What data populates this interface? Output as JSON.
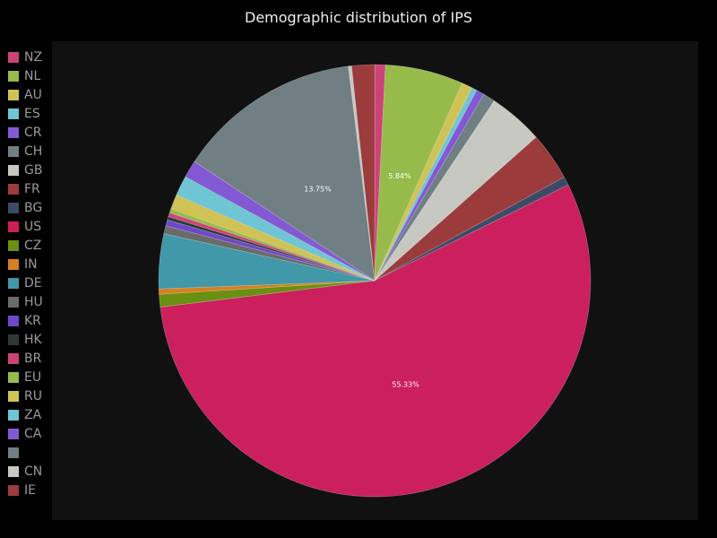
{
  "chart_data": {
    "type": "pie",
    "title": "Demographic distribution of IPS",
    "legend_placement": "left",
    "start_angle_deg": -90,
    "direction": "clockwise",
    "slices": [
      {
        "label": "NZ",
        "value": 0.8,
        "color": "#cc4477"
      },
      {
        "label": "NL",
        "value": 5.84,
        "color": "#96bb4a",
        "data_label": "5.84%"
      },
      {
        "label": "AU",
        "value": 0.8,
        "color": "#d0c355"
      },
      {
        "label": "ES",
        "value": 0.4,
        "color": "#6fc5d3"
      },
      {
        "label": "CR",
        "value": 0.6,
        "color": "#8359d3"
      },
      {
        "label": "CH",
        "value": 0.9,
        "color": "#6f7f83"
      },
      {
        "label": "GB",
        "value": 4.1,
        "color": "#c8c8c2"
      },
      {
        "label": "FR",
        "value": 3.6,
        "color": "#9b3b3c"
      },
      {
        "label": "BG",
        "value": 0.65,
        "color": "#3d4a66"
      },
      {
        "label": "US",
        "value": 55.33,
        "color": "#cb1f5e",
        "data_label": "55.33%"
      },
      {
        "label": "CZ",
        "value": 0.95,
        "color": "#6b8f12"
      },
      {
        "label": "IN",
        "value": 0.4,
        "color": "#d6801e"
      },
      {
        "label": "DE",
        "value": 4.1,
        "color": "#4198a8"
      },
      {
        "label": "HU",
        "value": 0.6,
        "color": "#6a6a6a"
      },
      {
        "label": "KR",
        "value": 0.45,
        "color": "#6f48c8"
      },
      {
        "label": "HK",
        "value": 0.25,
        "color": "#2f3a36"
      },
      {
        "label": "BR",
        "value": 0.3,
        "color": "#cc4477"
      },
      {
        "label": "EU",
        "value": 0.3,
        "color": "#96bb4a"
      },
      {
        "label": "RU",
        "value": 1.1,
        "color": "#d0c355"
      },
      {
        "label": "ZA",
        "value": 1.5,
        "color": "#6fc5d3"
      },
      {
        "label": "CA",
        "value": 1.3,
        "color": "#8359d3"
      },
      {
        "label": "",
        "value": 13.75,
        "color": "#6f7f83",
        "data_label": "13.75%"
      },
      {
        "label": "CN",
        "value": 0.25,
        "color": "#c8c8c2"
      },
      {
        "label": "IE",
        "value": 1.7,
        "color": "#9b3b3c"
      }
    ]
  }
}
